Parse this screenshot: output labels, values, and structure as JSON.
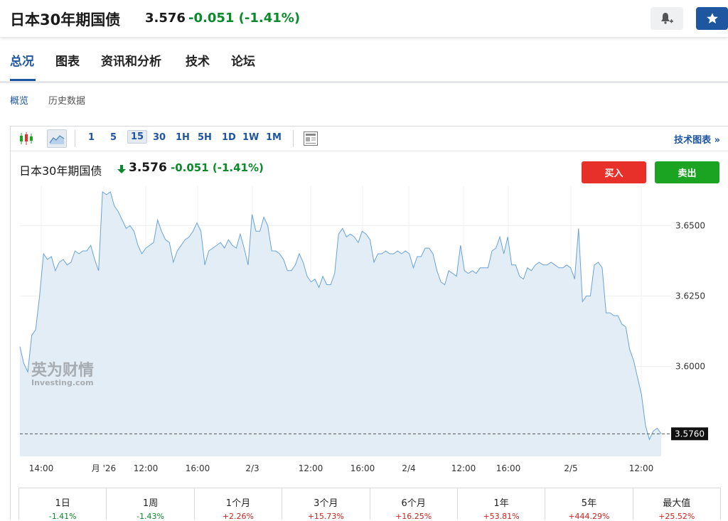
{
  "header": {
    "title": "日本30年期国债",
    "price": "3.576",
    "change": "-0.051 (-1.41%)"
  },
  "tabs": [
    {
      "label": "总况",
      "active": true
    },
    {
      "label": "图表",
      "active": false
    },
    {
      "label": "资讯和分析",
      "active": false
    },
    {
      "label": "技术",
      "active": false
    },
    {
      "label": "论坛",
      "active": false
    }
  ],
  "subnav": [
    {
      "label": "概览",
      "active": true
    },
    {
      "label": "历史数据",
      "active": false
    }
  ],
  "toolbar": {
    "intervals": [
      "1",
      "5",
      "15",
      "30",
      "1H",
      "5H",
      "1D",
      "1W",
      "1M"
    ],
    "active_interval": "15",
    "tech_chart_link": "技术图表 »"
  },
  "chart_header": {
    "title": "日本30年期国债",
    "arrow": "down",
    "price": "3.576",
    "change": "-0.051 (-1.41%)",
    "buy_label": "买入",
    "sell_label": "卖出"
  },
  "watermark": {
    "cn": "英为财情",
    "en": "Investing.com"
  },
  "colors": {
    "accent": "#1e56a0",
    "negative": "#0a8a2a",
    "positive": "#d0211c",
    "buy": "#e8302a",
    "sell": "#1aa421",
    "line": "#6aa3d5",
    "area": "#e3edf6"
  },
  "chart_data": {
    "type": "area",
    "y_ticks": [
      "3.6500",
      "3.6250",
      "3.6000"
    ],
    "ylim": [
      3.568,
      3.664
    ],
    "last_value_label": "3.5760",
    "last_value": 3.576,
    "x_ticks": [
      "14:00",
      "月 '26",
      "12:00",
      "16:00",
      "2/3",
      "12:00",
      "16:00",
      "2/4",
      "12:00",
      "16:00",
      "2/5",
      "12:00"
    ],
    "values": [
      3.607,
      3.601,
      3.598,
      3.611,
      3.613,
      3.625,
      3.64,
      3.638,
      3.639,
      3.634,
      3.637,
      3.638,
      3.636,
      3.637,
      3.641,
      3.64,
      3.641,
      3.641,
      3.643,
      3.638,
      3.634,
      3.662,
      3.661,
      3.662,
      3.657,
      3.655,
      3.652,
      3.649,
      3.65,
      3.648,
      3.643,
      3.64,
      3.642,
      3.643,
      3.644,
      3.652,
      3.648,
      3.645,
      3.644,
      3.637,
      3.641,
      3.643,
      3.645,
      3.646,
      3.648,
      3.651,
      3.648,
      3.636,
      3.641,
      3.642,
      3.643,
      3.644,
      3.642,
      3.645,
      3.643,
      3.642,
      3.647,
      3.642,
      3.636,
      3.654,
      3.648,
      3.648,
      3.653,
      3.65,
      3.641,
      3.641,
      3.64,
      3.638,
      3.634,
      3.634,
      3.636,
      3.64,
      3.637,
      3.632,
      3.63,
      3.631,
      3.628,
      3.632,
      3.629,
      3.629,
      3.633,
      3.647,
      3.649,
      3.646,
      3.647,
      3.646,
      3.644,
      3.648,
      3.647,
      3.645,
      3.637,
      3.64,
      3.64,
      3.641,
      3.64,
      3.64,
      3.641,
      3.64,
      3.641,
      3.64,
      3.635,
      3.639,
      3.639,
      3.642,
      3.642,
      3.64,
      3.634,
      3.63,
      3.629,
      3.634,
      3.633,
      3.632,
      3.643,
      3.634,
      3.633,
      3.634,
      3.633,
      3.635,
      3.635,
      3.635,
      3.641,
      3.642,
      3.646,
      3.64,
      3.646,
      3.636,
      3.636,
      3.632,
      3.631,
      3.635,
      3.634,
      3.636,
      3.637,
      3.636,
      3.636,
      3.637,
      3.636,
      3.635,
      3.635,
      3.636,
      3.635,
      3.631,
      3.649,
      3.623,
      3.625,
      3.625,
      3.636,
      3.637,
      3.635,
      3.619,
      3.619,
      3.618,
      3.618,
      3.615,
      3.614,
      3.606,
      3.602,
      3.596,
      3.59,
      3.579,
      3.574,
      3.577,
      3.578,
      3.576
    ]
  },
  "performance": [
    {
      "label": "1日",
      "value": "-1.41%",
      "dir": "neg"
    },
    {
      "label": "1周",
      "value": "-1.43%",
      "dir": "neg"
    },
    {
      "label": "1个月",
      "value": "+2.26%",
      "dir": "pos"
    },
    {
      "label": "3个月",
      "value": "+15.73%",
      "dir": "pos"
    },
    {
      "label": "6个月",
      "value": "+16.25%",
      "dir": "pos"
    },
    {
      "label": "1年",
      "value": "+53.81%",
      "dir": "pos"
    },
    {
      "label": "5年",
      "value": "+444.29%",
      "dir": "pos"
    },
    {
      "label": "最大值",
      "value": "+25.52%",
      "dir": "pos"
    }
  ]
}
